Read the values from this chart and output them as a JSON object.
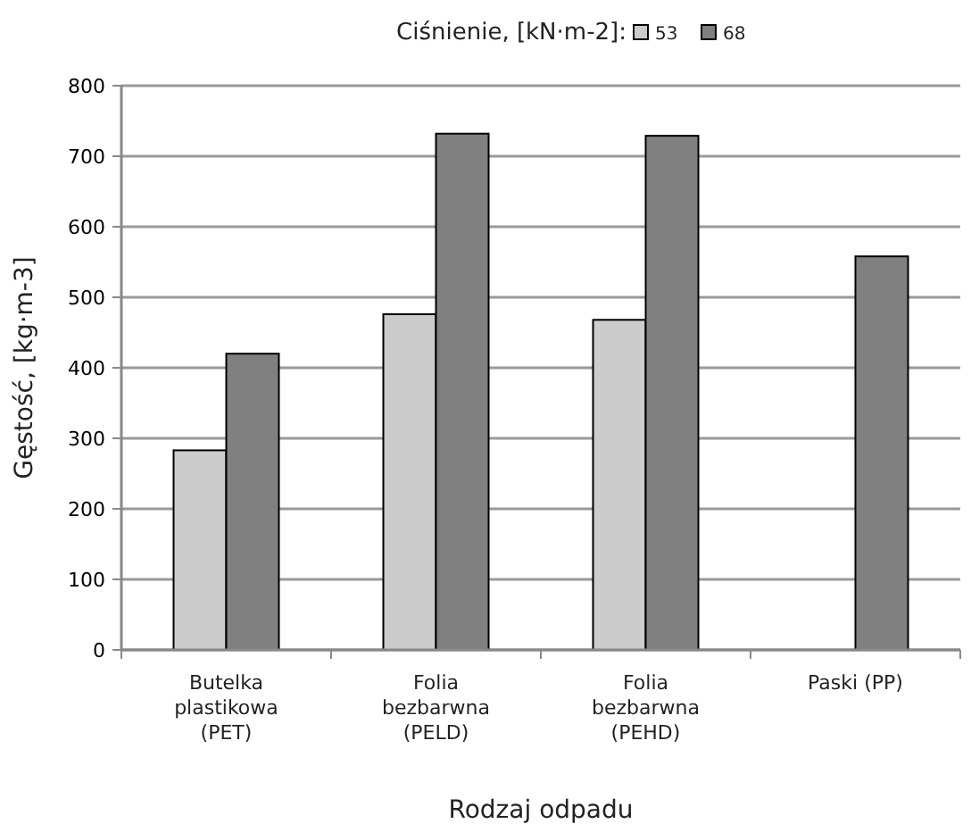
{
  "chart_data": {
    "type": "bar",
    "xlabel": "Rodzaj odpadu",
    "ylabel": "Gęstość, [kg·m-3]",
    "legend_title": "Ciśnienie, [kN·m-2]:",
    "categories": [
      "Butelka plastikowa (PET)",
      "Folia bezbarwna (PELD)",
      "Folia bezbarwna (PEHD)",
      "Paski (PP)"
    ],
    "series": [
      {
        "name": "53",
        "color": "#cccccc",
        "values": [
          283,
          476,
          468,
          null
        ]
      },
      {
        "name": "68",
        "color": "#808080",
        "values": [
          420,
          732,
          729,
          558
        ]
      }
    ],
    "ylim": [
      0,
      800
    ],
    "yticks": [
      0,
      100,
      200,
      300,
      400,
      500,
      600,
      700,
      800
    ],
    "grid": "y",
    "legend": "top"
  }
}
